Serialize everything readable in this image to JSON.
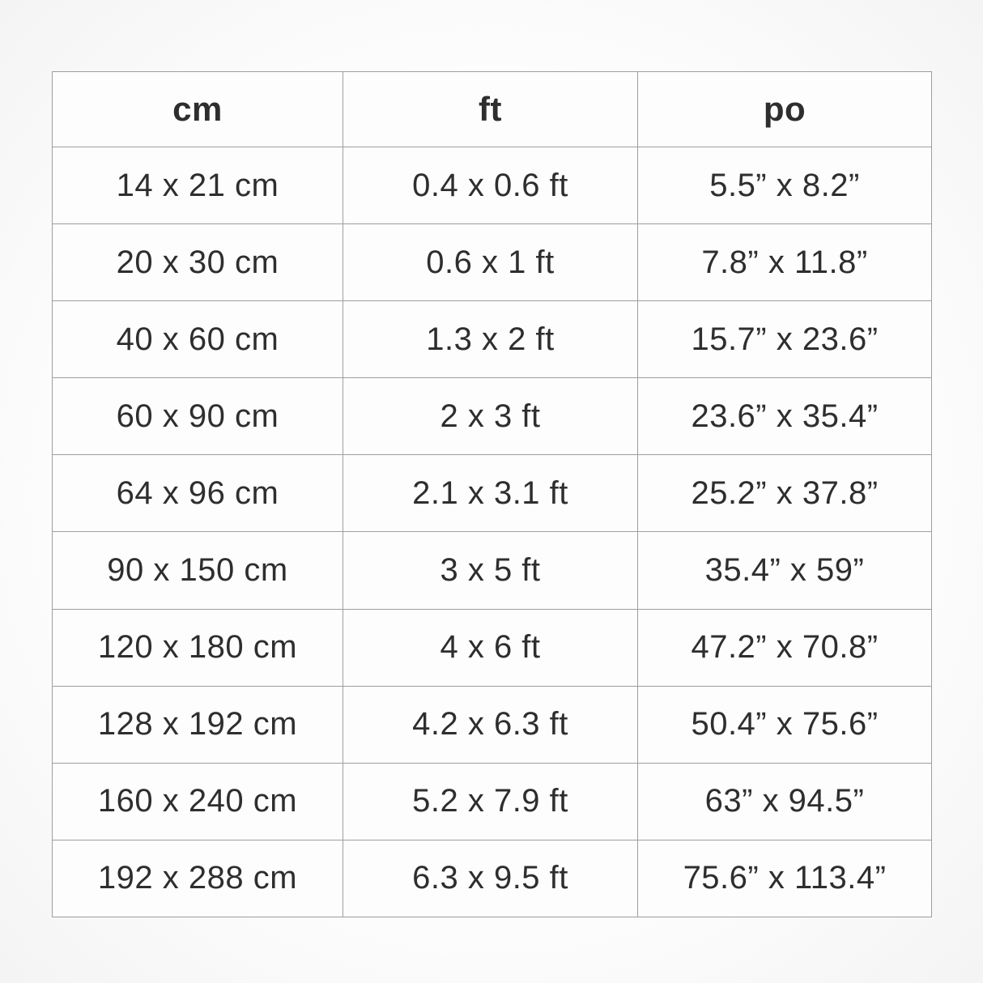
{
  "table": {
    "headers": {
      "cm": "cm",
      "ft": "ft",
      "po": "po"
    },
    "rows": [
      {
        "cm": "14 x 21 cm",
        "ft": "0.4 x 0.6 ft",
        "po": "5.5” x 8.2”"
      },
      {
        "cm": "20 x 30 cm",
        "ft": "0.6 x 1 ft",
        "po": "7.8” x 11.8”"
      },
      {
        "cm": "40 x 60 cm",
        "ft": "1.3 x 2 ft",
        "po": "15.7” x 23.6”"
      },
      {
        "cm": "60 x 90 cm",
        "ft": "2 x 3 ft",
        "po": "23.6” x 35.4”"
      },
      {
        "cm": "64 x 96 cm",
        "ft": "2.1 x 3.1 ft",
        "po": "25.2” x 37.8”"
      },
      {
        "cm": "90 x 150 cm",
        "ft": "3 x 5 ft",
        "po": "35.4” x 59”"
      },
      {
        "cm": "120 x 180 cm",
        "ft": "4 x 6 ft",
        "po": "47.2” x 70.8”"
      },
      {
        "cm": "128 x 192 cm",
        "ft": "4.2 x 6.3 ft",
        "po": "50.4” x 75.6”"
      },
      {
        "cm": "160 x 240 cm",
        "ft": "5.2 x 7.9 ft",
        "po": "63” x 94.5”"
      },
      {
        "cm": "192 x 288 cm",
        "ft": "6.3 x 9.5 ft",
        "po": "75.6” x 113.4”"
      }
    ],
    "colors": {
      "border": "#9e9e9e",
      "cell_background": "#fdfdfd",
      "text": "#2e2e2e"
    }
  }
}
